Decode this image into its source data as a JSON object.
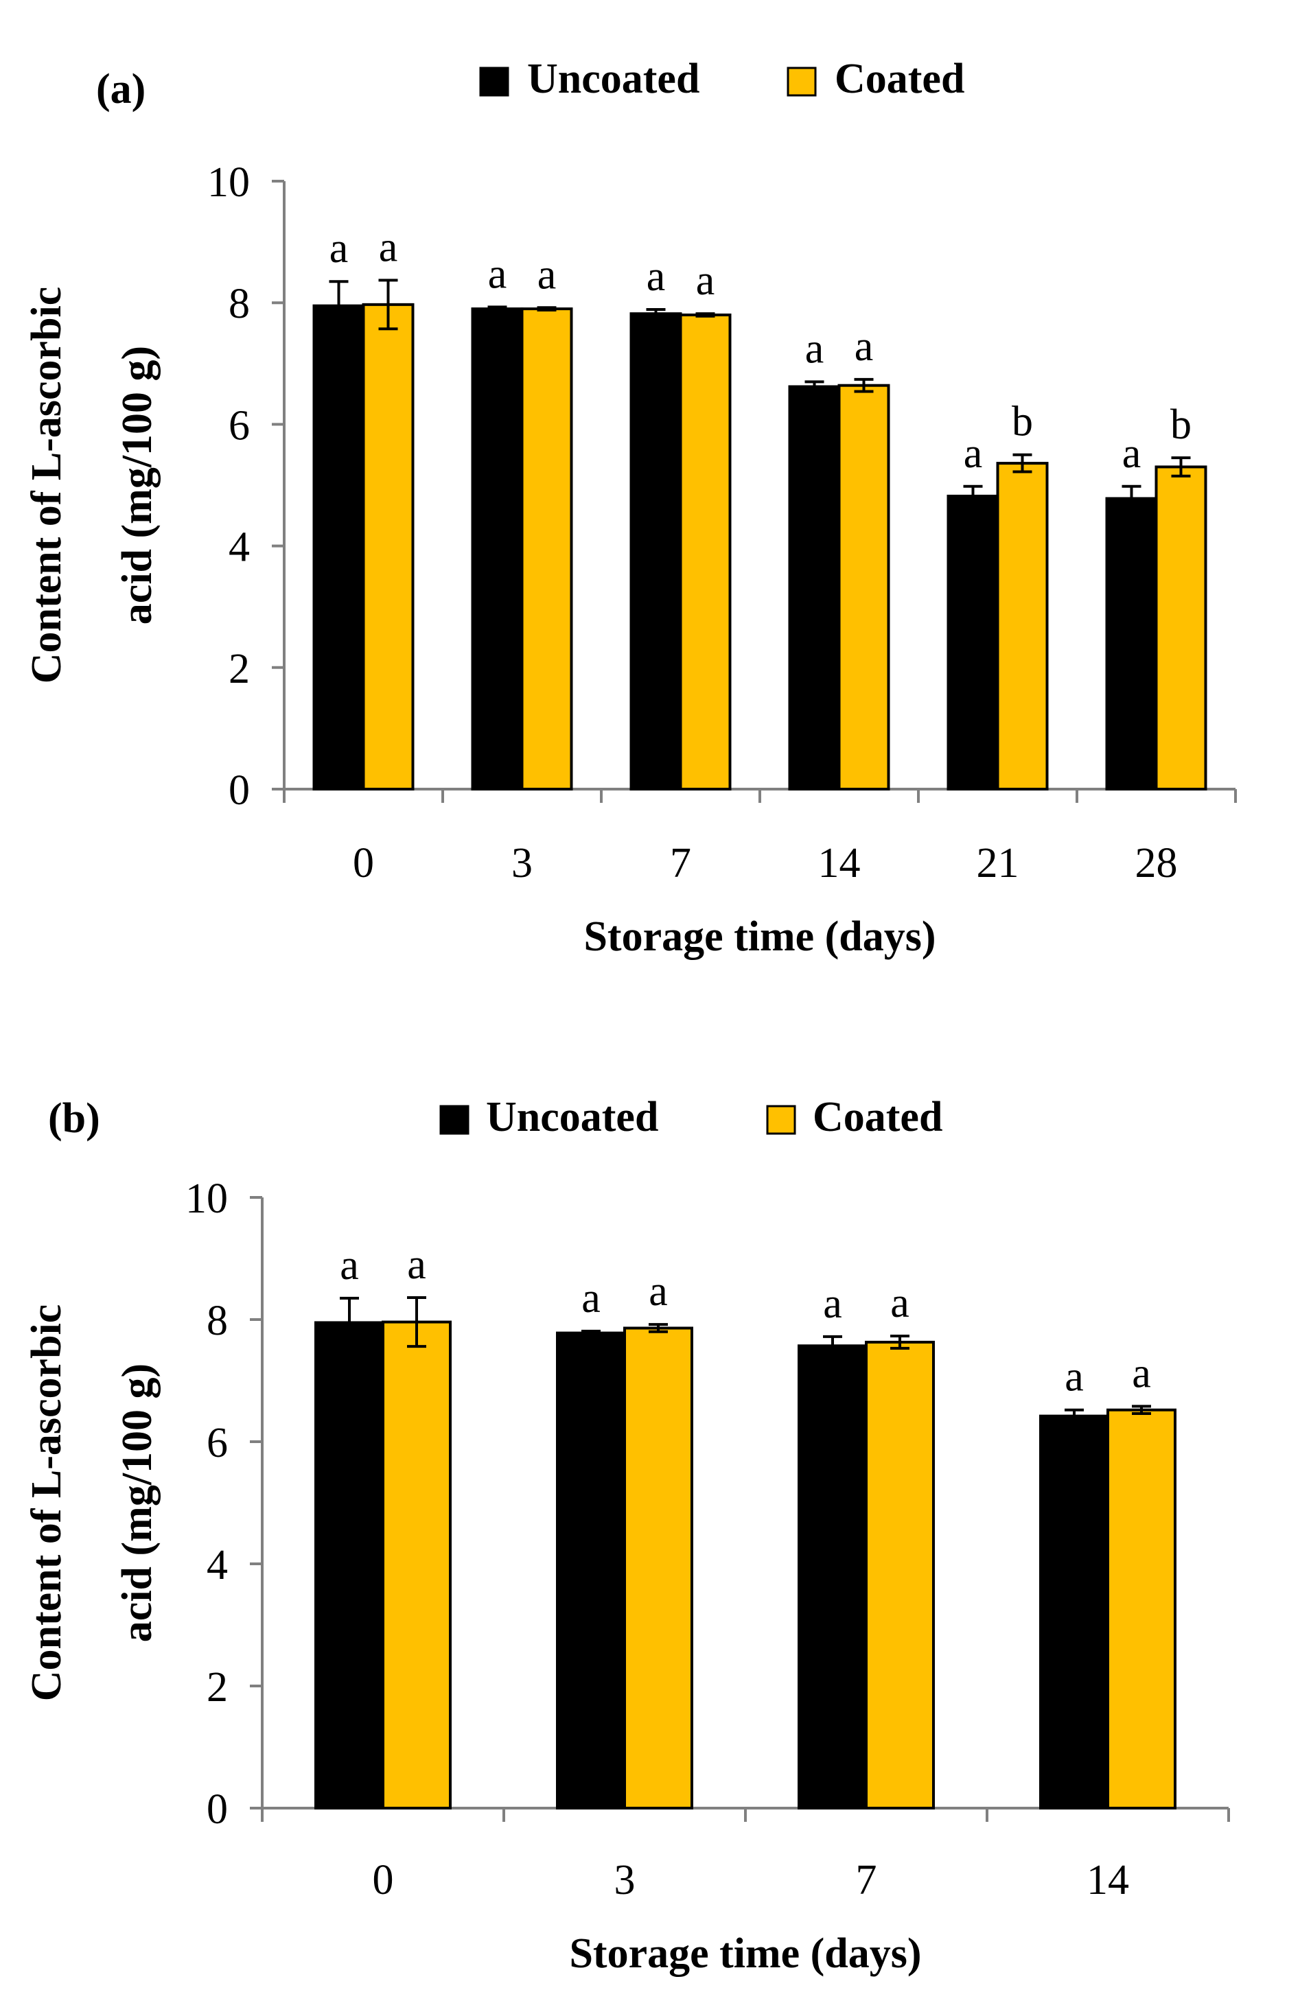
{
  "figure": {
    "colors": {
      "uncoated": "#000000",
      "coated": "#FFC000",
      "axis": "#808080",
      "text": "#000000"
    }
  },
  "chart_data": [
    {
      "type": "bar",
      "panel_label": "(a)",
      "title": "",
      "xlabel": "Storage time (days)",
      "ylabel_lines": [
        "Content of L-ascorbic",
        "acid (mg/100 g)"
      ],
      "ylim": [
        0,
        10
      ],
      "yticks": [
        0,
        2,
        4,
        6,
        8,
        10
      ],
      "grid": false,
      "legend_position": "top-center",
      "categories": [
        "0",
        "3",
        "7",
        "14",
        "21",
        "28"
      ],
      "series": [
        {
          "name": "Uncoated",
          "color": "#000000",
          "values": [
            7.95,
            7.9,
            7.82,
            6.62,
            4.82,
            4.78
          ],
          "errors": [
            0.4,
            0.03,
            0.07,
            0.08,
            0.16,
            0.2
          ],
          "labels": [
            "a",
            "a",
            "a",
            "a",
            "a",
            "a"
          ]
        },
        {
          "name": "Coated",
          "color": "#FFC000",
          "values": [
            7.97,
            7.9,
            7.8,
            6.64,
            5.36,
            5.3
          ],
          "errors": [
            0.4,
            0.02,
            0.02,
            0.1,
            0.14,
            0.15
          ],
          "labels": [
            "a",
            "a",
            "a",
            "a",
            "b",
            "b"
          ]
        }
      ]
    },
    {
      "type": "bar",
      "panel_label": "(b)",
      "title": "",
      "xlabel": "Storage time (days)",
      "ylabel_lines": [
        "Content of L-ascorbic",
        "acid (mg/100 g)"
      ],
      "ylim": [
        0,
        10
      ],
      "yticks": [
        0,
        2,
        4,
        6,
        8,
        10
      ],
      "grid": false,
      "legend_position": "top-center",
      "categories": [
        "0",
        "3",
        "7",
        "14"
      ],
      "series": [
        {
          "name": "Uncoated",
          "color": "#000000",
          "values": [
            7.95,
            7.78,
            7.57,
            6.42
          ],
          "errors": [
            0.4,
            0.03,
            0.15,
            0.1
          ],
          "labels": [
            "a",
            "a",
            "a",
            "a"
          ]
        },
        {
          "name": "Coated",
          "color": "#FFC000",
          "values": [
            7.96,
            7.86,
            7.63,
            6.52
          ],
          "errors": [
            0.4,
            0.06,
            0.1,
            0.06
          ],
          "labels": [
            "a",
            "a",
            "a",
            "a"
          ]
        }
      ]
    }
  ]
}
